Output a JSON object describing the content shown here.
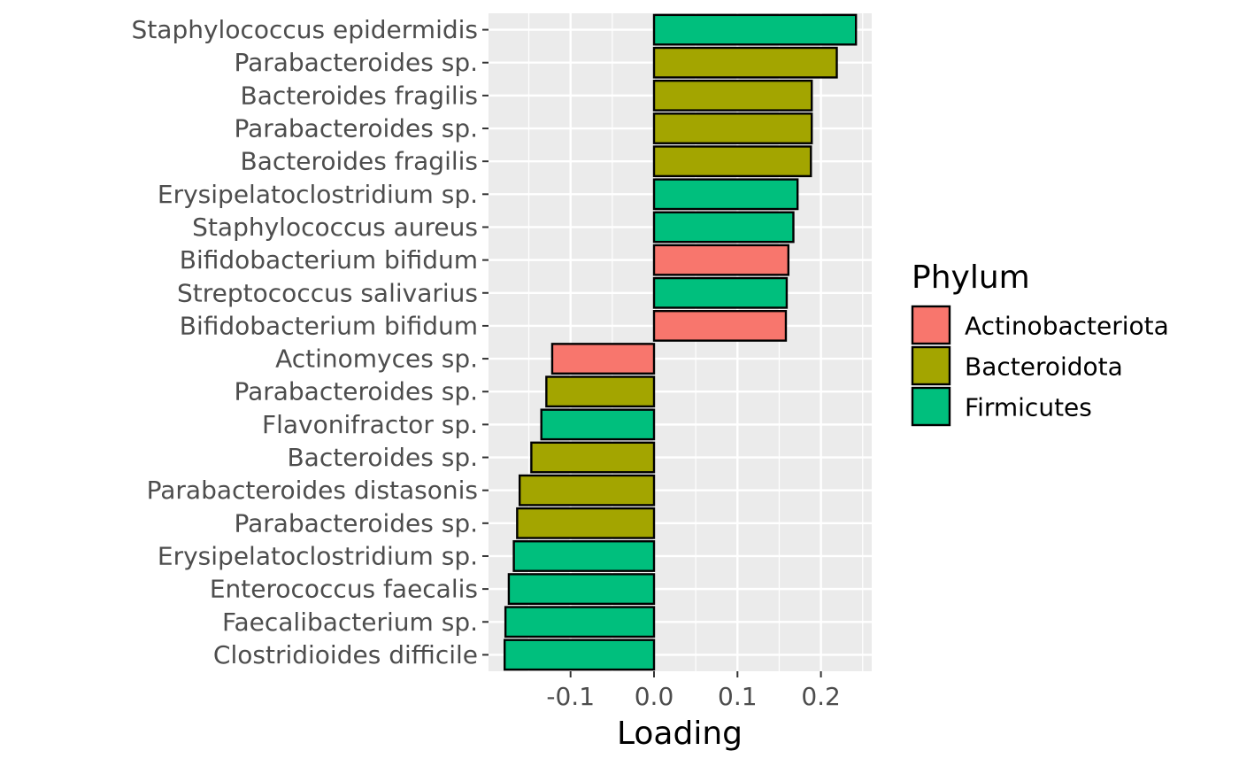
{
  "chart_data": {
    "type": "bar",
    "orientation": "horizontal",
    "xlabel": "Loading",
    "ylabel": "",
    "title": "",
    "xlim": [
      -0.2,
      0.26
    ],
    "x_ticks": [
      -0.1,
      0.0,
      0.1,
      0.2
    ],
    "x_tick_labels": [
      "-0.1",
      "0.0",
      "0.1",
      "0.2"
    ],
    "grid": true,
    "legend": {
      "title": "Phylum",
      "placement": "right",
      "entries": [
        {
          "name": "Actinobacteriota",
          "color": "#F8766D"
        },
        {
          "name": "Bacteroidota",
          "color": "#A3A500"
        },
        {
          "name": "Firmicutes",
          "color": "#00BF7D"
        }
      ]
    },
    "panel_background": "#EBEBEB",
    "bar_outline": "#000000",
    "bars": [
      {
        "label": "Staphylococcus epidermidis",
        "value": 0.242,
        "phylum": "Firmicutes"
      },
      {
        "label": "Parabacteroides sp.",
        "value": 0.219,
        "phylum": "Bacteroidota"
      },
      {
        "label": "Bacteroides fragilis",
        "value": 0.189,
        "phylum": "Bacteroidota"
      },
      {
        "label": "Parabacteroides sp.",
        "value": 0.189,
        "phylum": "Bacteroidota"
      },
      {
        "label": "Bacteroides fragilis",
        "value": 0.188,
        "phylum": "Bacteroidota"
      },
      {
        "label": "Erysipelatoclostridium sp.",
        "value": 0.172,
        "phylum": "Firmicutes"
      },
      {
        "label": "Staphylococcus aureus",
        "value": 0.167,
        "phylum": "Firmicutes"
      },
      {
        "label": "Bifidobacterium bifidum",
        "value": 0.161,
        "phylum": "Actinobacteriota"
      },
      {
        "label": "Streptococcus salivarius",
        "value": 0.159,
        "phylum": "Firmicutes"
      },
      {
        "label": "Bifidobacterium bifidum",
        "value": 0.158,
        "phylum": "Actinobacteriota"
      },
      {
        "label": "Actinomyces sp.",
        "value": -0.122,
        "phylum": "Actinobacteriota"
      },
      {
        "label": "Parabacteroides sp.",
        "value": -0.129,
        "phylum": "Bacteroidota"
      },
      {
        "label": "Flavonifractor sp.",
        "value": -0.135,
        "phylum": "Firmicutes"
      },
      {
        "label": "Bacteroides sp.",
        "value": -0.147,
        "phylum": "Bacteroidota"
      },
      {
        "label": "Parabacteroides distasonis",
        "value": -0.161,
        "phylum": "Bacteroidota"
      },
      {
        "label": "Parabacteroides sp.",
        "value": -0.164,
        "phylum": "Bacteroidota"
      },
      {
        "label": "Erysipelatoclostridium sp.",
        "value": -0.168,
        "phylum": "Firmicutes"
      },
      {
        "label": "Enterococcus faecalis",
        "value": -0.174,
        "phylum": "Firmicutes"
      },
      {
        "label": "Faecalibacterium sp.",
        "value": -0.178,
        "phylum": "Firmicutes"
      },
      {
        "label": "Clostridioides difficile",
        "value": -0.179,
        "phylum": "Firmicutes"
      }
    ]
  }
}
